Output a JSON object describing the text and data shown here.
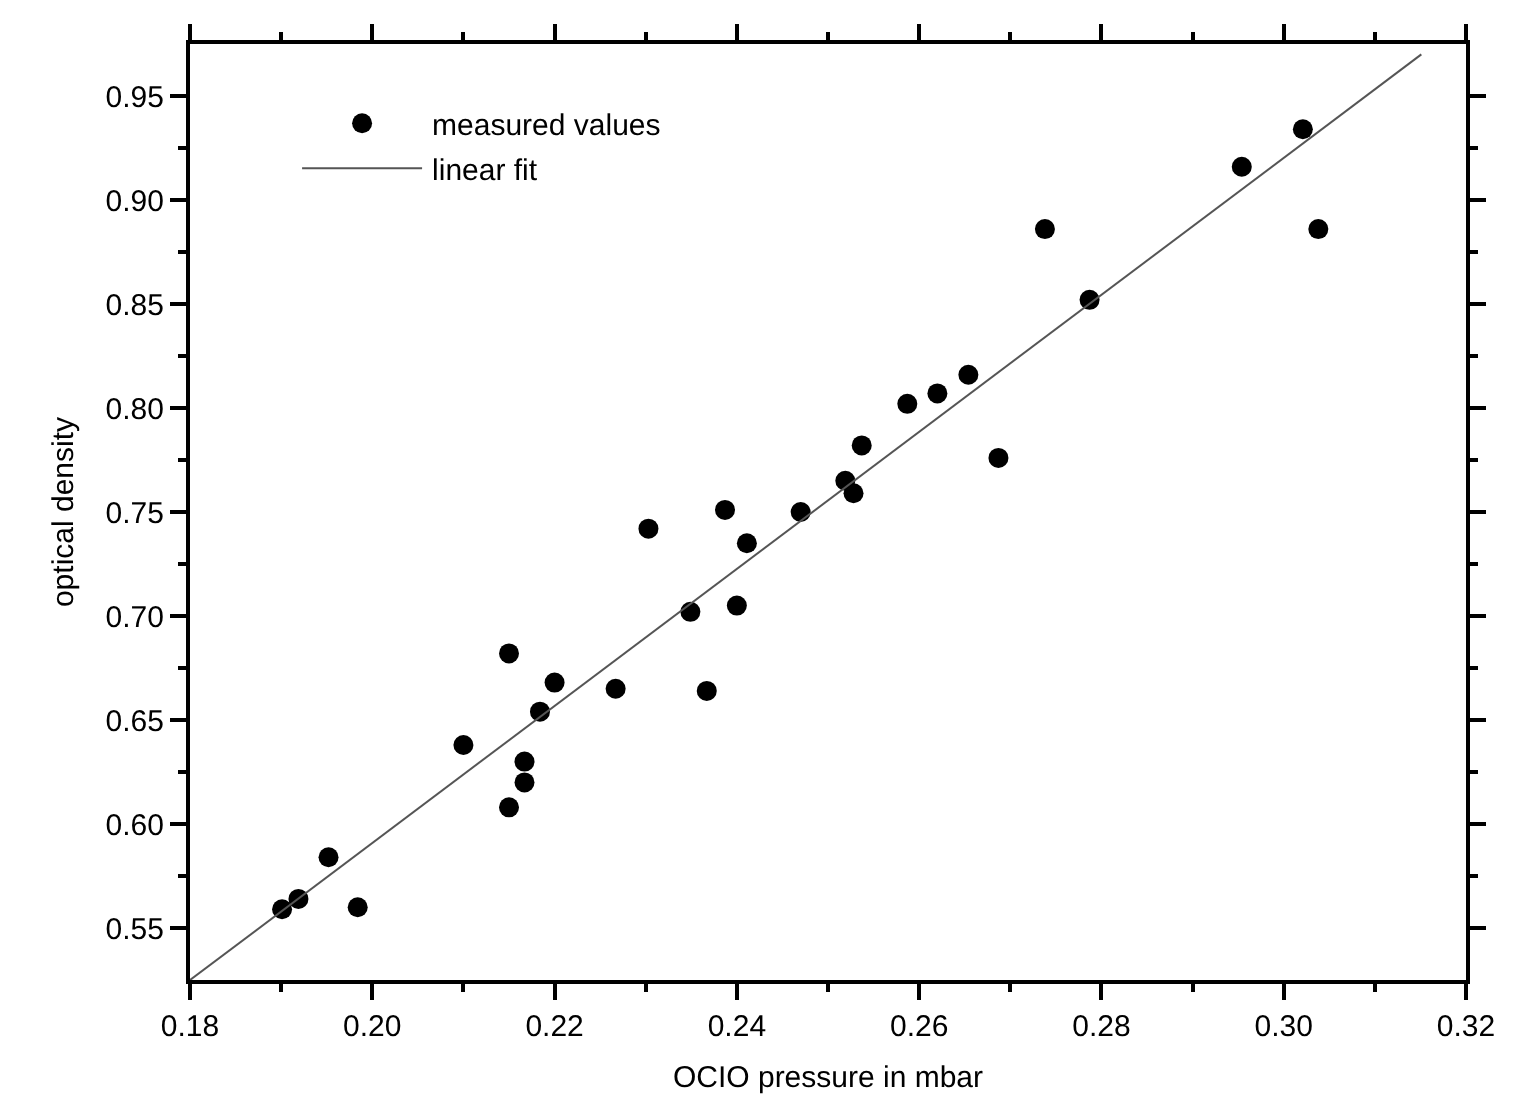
{
  "chart_data": {
    "type": "scatter",
    "xlabel": "OCIO pressure in mbar",
    "ylabel": "optical density",
    "xlim": [
      0.18,
      0.32
    ],
    "ylim": [
      0.525,
      0.975
    ],
    "xticks": [
      {
        "value": 0.18,
        "label": "0.18"
      },
      {
        "value": 0.19,
        "label": null
      },
      {
        "value": 0.2,
        "label": "0.20"
      },
      {
        "value": 0.21,
        "label": null
      },
      {
        "value": 0.22,
        "label": "0.22"
      },
      {
        "value": 0.23,
        "label": null
      },
      {
        "value": 0.24,
        "label": "0.24"
      },
      {
        "value": 0.25,
        "label": null
      },
      {
        "value": 0.26,
        "label": "0.26"
      },
      {
        "value": 0.27,
        "label": null
      },
      {
        "value": 0.28,
        "label": "0.28"
      },
      {
        "value": 0.29,
        "label": null
      },
      {
        "value": 0.3,
        "label": "0.30"
      },
      {
        "value": 0.31,
        "label": null
      },
      {
        "value": 0.32,
        "label": "0.32"
      }
    ],
    "yticks": [
      {
        "value": 0.55,
        "label": "0.55"
      },
      {
        "value": 0.575,
        "label": null
      },
      {
        "value": 0.6,
        "label": "0.60"
      },
      {
        "value": 0.625,
        "label": null
      },
      {
        "value": 0.65,
        "label": "0.65"
      },
      {
        "value": 0.675,
        "label": null
      },
      {
        "value": 0.7,
        "label": "0.70"
      },
      {
        "value": 0.725,
        "label": null
      },
      {
        "value": 0.75,
        "label": "0.75"
      },
      {
        "value": 0.775,
        "label": null
      },
      {
        "value": 0.8,
        "label": "0.80"
      },
      {
        "value": 0.825,
        "label": null
      },
      {
        "value": 0.85,
        "label": "0.85"
      },
      {
        "value": 0.875,
        "label": null
      },
      {
        "value": 0.9,
        "label": "0.90"
      },
      {
        "value": 0.925,
        "label": null
      },
      {
        "value": 0.95,
        "label": "0.95"
      }
    ],
    "grid": false,
    "legend": "top left",
    "series": [
      {
        "name": "measured values",
        "type": "scatter",
        "marker": "circle",
        "color": "#000000",
        "x": [
          0.1901,
          0.1919,
          0.1952,
          0.1984,
          0.21,
          0.215,
          0.215,
          0.2167,
          0.2167,
          0.2184,
          0.22,
          0.2267,
          0.2349,
          0.2367,
          0.24,
          0.2303,
          0.2387,
          0.2411,
          0.247,
          0.2519,
          0.2528,
          0.2537,
          0.2587,
          0.262,
          0.2654,
          0.2687,
          0.2738,
          0.2787,
          0.2954,
          0.3021,
          0.3038
        ],
        "values": [
          0.559,
          0.564,
          0.584,
          0.56,
          0.638,
          0.682,
          0.608,
          0.63,
          0.62,
          0.654,
          0.668,
          0.665,
          0.702,
          0.664,
          0.705,
          0.742,
          0.751,
          0.735,
          0.75,
          0.765,
          0.759,
          0.782,
          0.802,
          0.807,
          0.816,
          0.776,
          0.886,
          0.852,
          0.916,
          0.934,
          0.886
        ]
      },
      {
        "name": "linear fit",
        "type": "line",
        "marker": "none",
        "line_style": "solid",
        "color": "#555555",
        "x": [
          0.18,
          0.3151
        ],
        "values": [
          0.525,
          0.97
        ]
      }
    ]
  }
}
